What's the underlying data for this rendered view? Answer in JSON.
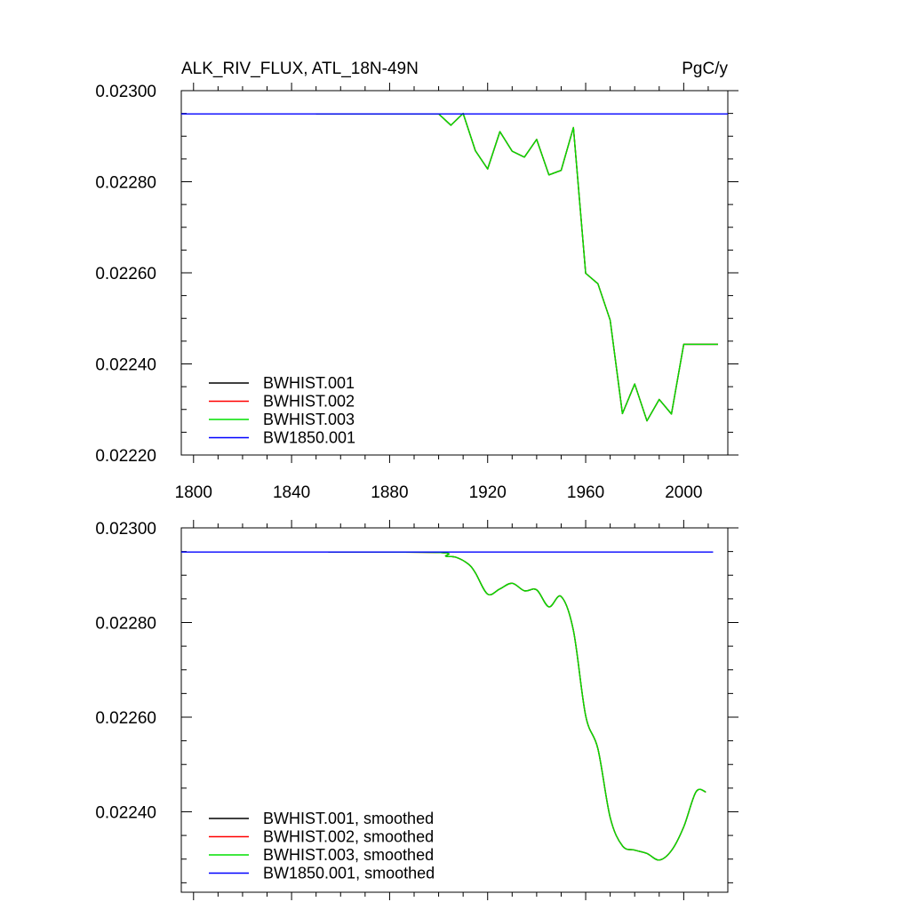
{
  "figure": {
    "title_left": "ALK_RIV_FLUX, ATL_18N-49N",
    "title_right": "PgC/y"
  },
  "chart_data": [
    {
      "type": "line",
      "title": "ALK_RIV_FLUX, ATL_18N-49N",
      "units": "PgC/y",
      "xlim": [
        1795,
        2018
      ],
      "ylim": [
        0.0222,
        0.023
      ],
      "x_ticks": [
        1800,
        1840,
        1880,
        1920,
        1960,
        2000
      ],
      "y_ticks": [
        0.0222,
        0.0224,
        0.0226,
        0.0228,
        0.023
      ],
      "y_tick_labels": [
        "0.02220",
        "0.02240",
        "0.02260",
        "0.02280",
        "0.02300"
      ],
      "x_tick_labels": [
        "1800",
        "1840",
        "1880",
        "1920",
        "1960",
        "2000"
      ],
      "grid": false,
      "legend_position": "bottom-left",
      "series": [
        {
          "name": "BWHIST.001",
          "color": "#000000",
          "x": [
            1850,
            1900,
            1905,
            1910,
            1915,
            1920,
            1925,
            1930,
            1935,
            1940,
            1945,
            1950,
            1955,
            1960,
            1965,
            1970,
            1975,
            1980,
            1985,
            1990,
            1995,
            2000,
            2014
          ],
          "y": [
            0.022949,
            0.022949,
            0.022924,
            0.02295,
            0.022868,
            0.022828,
            0.02291,
            0.022867,
            0.022854,
            0.022893,
            0.022815,
            0.022825,
            0.022919,
            0.022599,
            0.022576,
            0.022496,
            0.022291,
            0.022356,
            0.022275,
            0.022322,
            0.02229,
            0.022443,
            0.022443
          ]
        },
        {
          "name": "BWHIST.002",
          "color": "#ff0000",
          "x": [
            1850,
            1900,
            1905,
            1910,
            1915,
            1920,
            1925,
            1930,
            1935,
            1940,
            1945,
            1950,
            1955,
            1960,
            1965,
            1970,
            1975,
            1980,
            1985,
            1990,
            1995,
            2000,
            2014
          ],
          "y": [
            0.022949,
            0.022949,
            0.022924,
            0.02295,
            0.022868,
            0.022828,
            0.02291,
            0.022867,
            0.022854,
            0.022893,
            0.022815,
            0.022825,
            0.022919,
            0.022599,
            0.022576,
            0.022496,
            0.022291,
            0.022356,
            0.022275,
            0.022322,
            0.02229,
            0.022443,
            0.022443
          ]
        },
        {
          "name": "BWHIST.003",
          "color": "#00e000",
          "x": [
            1850,
            1900,
            1905,
            1910,
            1915,
            1920,
            1925,
            1930,
            1935,
            1940,
            1945,
            1950,
            1955,
            1960,
            1965,
            1970,
            1975,
            1980,
            1985,
            1990,
            1995,
            2000,
            2014
          ],
          "y": [
            0.022949,
            0.022949,
            0.022924,
            0.02295,
            0.022868,
            0.022828,
            0.02291,
            0.022867,
            0.022854,
            0.022893,
            0.022815,
            0.022825,
            0.022919,
            0.022599,
            0.022576,
            0.022496,
            0.022291,
            0.022356,
            0.022275,
            0.022322,
            0.02229,
            0.022443,
            0.022443
          ]
        },
        {
          "name": "BW1850.001",
          "color": "#0000ff",
          "x": [
            1795,
            2018
          ],
          "y": [
            0.022949,
            0.022949
          ]
        }
      ]
    },
    {
      "type": "line",
      "xlim": [
        1795,
        2018
      ],
      "ylim": [
        0.02223,
        0.023
      ],
      "x_ticks": [
        1800,
        1840,
        1880,
        1920,
        1960,
        2000
      ],
      "y_ticks": [
        0.0224,
        0.0226,
        0.0228,
        0.023
      ],
      "y_tick_labels": [
        "0.02240",
        "0.02260",
        "0.02280",
        "0.02300"
      ],
      "grid": false,
      "legend_position": "bottom-left",
      "series": [
        {
          "name": "BWHIST.001, smoothed",
          "color": "#000000",
          "x": [
            1855,
            1900,
            1903,
            1907,
            1912,
            1915,
            1920,
            1925,
            1930,
            1935,
            1940,
            1945,
            1950,
            1955,
            1960,
            1965,
            1970,
            1975,
            1980,
            1985,
            1990,
            1995,
            2000,
            2005,
            2009
          ],
          "y": [
            0.022949,
            0.022948,
            0.02294,
            0.022938,
            0.022924,
            0.022905,
            0.02286,
            0.022871,
            0.022883,
            0.022867,
            0.022869,
            0.022833,
            0.022855,
            0.022783,
            0.022603,
            0.022533,
            0.022388,
            0.022328,
            0.022319,
            0.022312,
            0.022298,
            0.022318,
            0.022368,
            0.022442,
            0.022442
          ]
        },
        {
          "name": "BWHIST.002, smoothed",
          "color": "#ff0000",
          "x": [
            1855,
            1900,
            1903,
            1907,
            1912,
            1915,
            1920,
            1925,
            1930,
            1935,
            1940,
            1945,
            1950,
            1955,
            1960,
            1965,
            1970,
            1975,
            1980,
            1985,
            1990,
            1995,
            2000,
            2005,
            2009
          ],
          "y": [
            0.022949,
            0.022948,
            0.02294,
            0.022938,
            0.022924,
            0.022905,
            0.02286,
            0.022871,
            0.022883,
            0.022867,
            0.022869,
            0.022833,
            0.022855,
            0.022783,
            0.022603,
            0.022533,
            0.022388,
            0.022328,
            0.022319,
            0.022312,
            0.022298,
            0.022318,
            0.022368,
            0.022442,
            0.022442
          ]
        },
        {
          "name": "BWHIST.003, smoothed",
          "color": "#00e000",
          "x": [
            1855,
            1900,
            1903,
            1907,
            1912,
            1915,
            1920,
            1925,
            1930,
            1935,
            1940,
            1945,
            1950,
            1955,
            1960,
            1965,
            1970,
            1975,
            1980,
            1985,
            1990,
            1995,
            2000,
            2005,
            2009
          ],
          "y": [
            0.022949,
            0.022948,
            0.02294,
            0.022938,
            0.022924,
            0.022905,
            0.02286,
            0.022871,
            0.022883,
            0.022867,
            0.022869,
            0.022833,
            0.022855,
            0.022783,
            0.022603,
            0.022533,
            0.022388,
            0.022328,
            0.022319,
            0.022312,
            0.022298,
            0.022318,
            0.022368,
            0.022442,
            0.022442
          ]
        },
        {
          "name": "BW1850.001, smoothed",
          "color": "#0000ff",
          "x": [
            1795,
            2012
          ],
          "y": [
            0.022949,
            0.022949
          ]
        }
      ]
    }
  ]
}
